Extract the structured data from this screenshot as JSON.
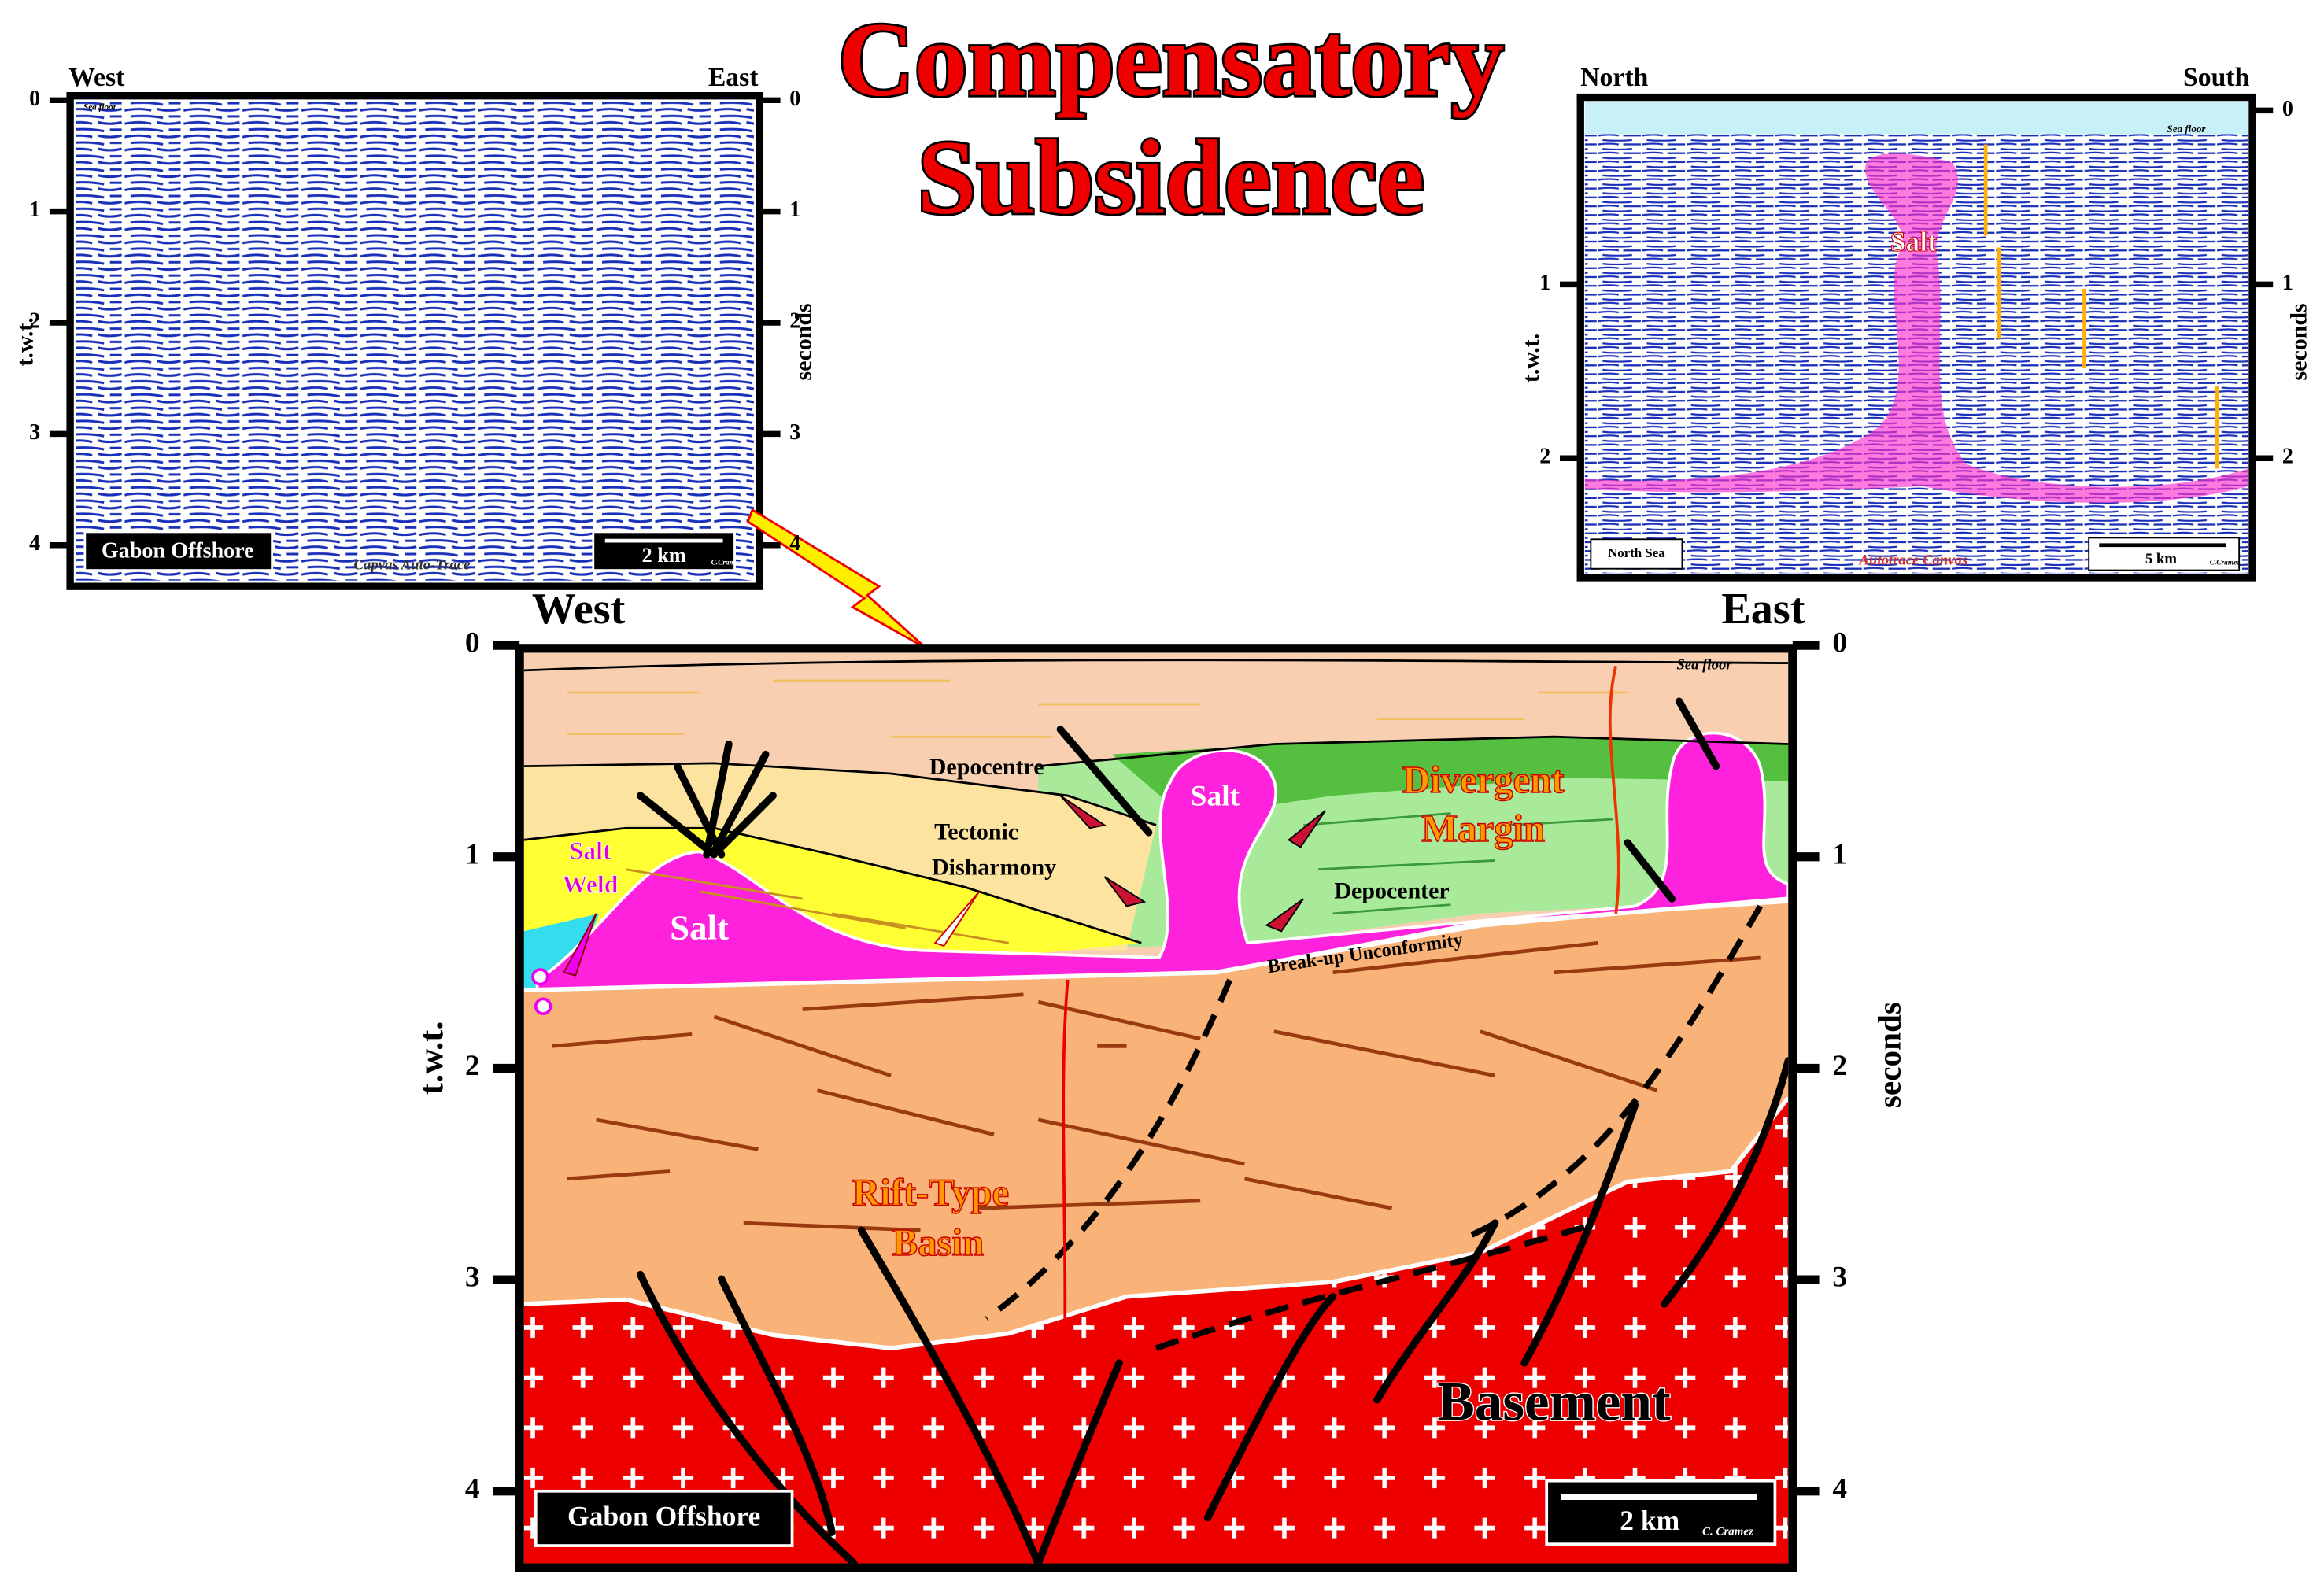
{
  "title": [
    "Compensatory",
    "Subsidence"
  ],
  "left_panel": {
    "west": "West",
    "east": "East",
    "ticks": [
      0,
      1,
      2,
      3,
      4
    ],
    "y_label": "t.w.t.",
    "y2_label": "seconds",
    "sea_floor": "Sea floor",
    "location": "Gabon Offshore",
    "scale": "2 km",
    "credit": "C.Cramez",
    "footer": "Capvas Auto-Trace"
  },
  "right_panel": {
    "north": "North",
    "south": "South",
    "ticks_left": [
      1,
      2
    ],
    "ticks_right": [
      0,
      1,
      2
    ],
    "y_label": "t.w.t.",
    "y2_label": "seconds",
    "sea_floor": "Sea floor",
    "salt": "Salt",
    "location": "North Sea",
    "scale": "5 km",
    "credit": "C.Cramez",
    "footer": "Autotrace Canvas"
  },
  "main_panel": {
    "west": "West",
    "east": "East",
    "ticks": [
      0,
      1,
      2,
      3,
      4
    ],
    "y_label": "t.w.t.",
    "y2_label": "seconds",
    "sea_floor": "Sea floor",
    "labels": {
      "depocentre": "Depocentre",
      "salt_diapir": "Salt",
      "divergent_margin": [
        "Divergent",
        "Margin"
      ],
      "tectonic_disharmony": [
        "Tectonic",
        "Disharmony"
      ],
      "salt_weld": [
        "Salt",
        "Weld"
      ],
      "salt_pillow": "Salt",
      "depocenter": "Depocenter",
      "unconformity": "Break-up Unconformity",
      "rift_basin": [
        "Rift-Type",
        "Basin"
      ],
      "basement": "Basement"
    },
    "location": "Gabon Offshore",
    "scale": "2 km",
    "credit": "C. Cramez"
  }
}
